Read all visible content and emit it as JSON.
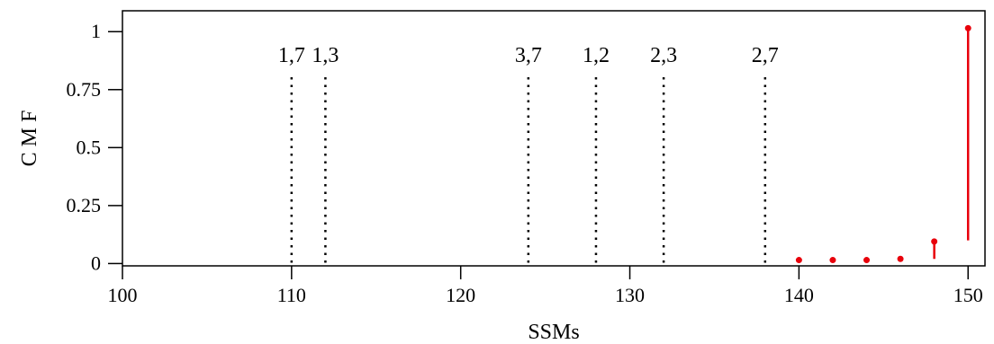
{
  "chart_data": {
    "type": "scatter",
    "title": "",
    "xlabel": "SSMs",
    "ylabel": "C M F",
    "xlim": [
      100,
      151
    ],
    "ylim": [
      -0.01,
      1.09
    ],
    "x_ticks": [
      100,
      110,
      120,
      130,
      140,
      150
    ],
    "y_ticks": [
      {
        "value": 0,
        "label": "0"
      },
      {
        "value": 0.25,
        "label": "0.25"
      },
      {
        "value": 0.5,
        "label": "0.5"
      },
      {
        "value": 0.75,
        "label": "0.75"
      },
      {
        "value": 1,
        "label": "1"
      }
    ],
    "grid": false,
    "vertical_markers": [
      {
        "x": 110,
        "label": "1,7"
      },
      {
        "x": 112,
        "label": "1,3"
      },
      {
        "x": 124,
        "label": "3,7"
      },
      {
        "x": 128,
        "label": "1,2"
      },
      {
        "x": 132,
        "label": "2,3"
      },
      {
        "x": 138,
        "label": "2,7"
      }
    ],
    "series": [
      {
        "color": "#e8000b",
        "points": [
          {
            "x": 140,
            "y0": 0.015,
            "y": 0.015
          },
          {
            "x": 142,
            "y0": 0.015,
            "y": 0.015
          },
          {
            "x": 144,
            "y0": 0.015,
            "y": 0.015
          },
          {
            "x": 146,
            "y0": 0.02,
            "y": 0.02
          },
          {
            "x": 148,
            "y0": 0.02,
            "y": 0.095
          },
          {
            "x": 150,
            "y0": 0.1,
            "y": 1.015
          }
        ]
      }
    ]
  }
}
